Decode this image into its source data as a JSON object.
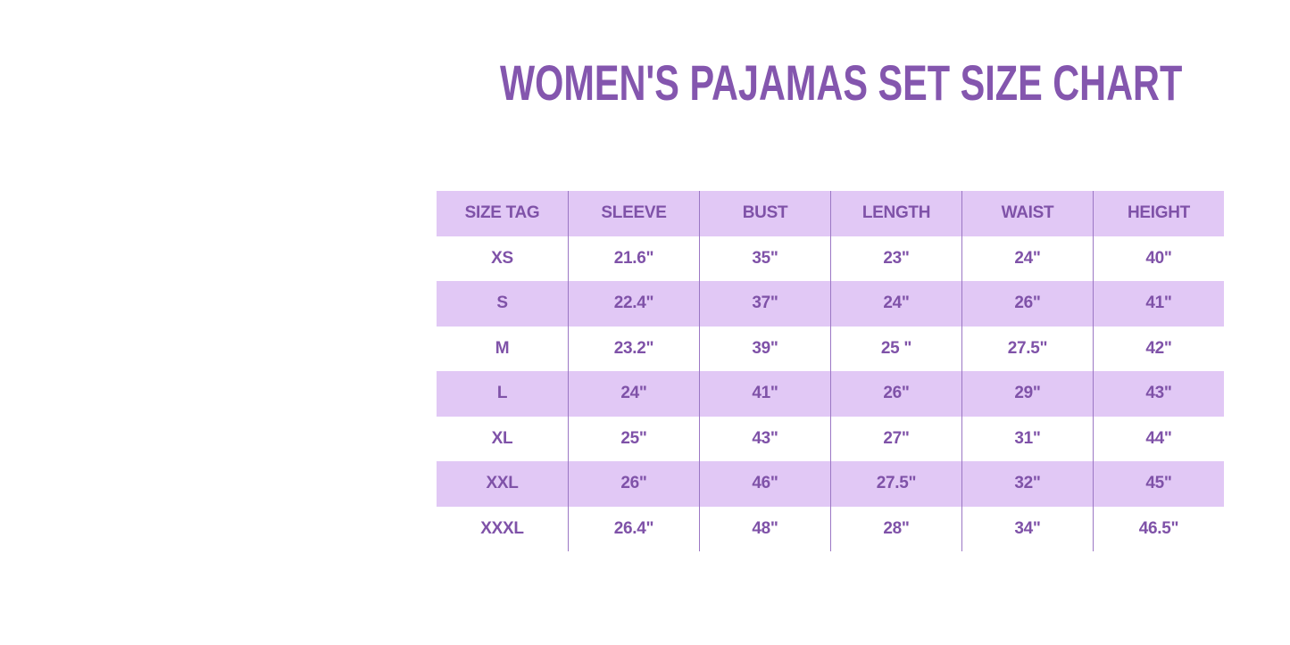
{
  "title": "WOMEN'S PAJAMAS SET SIZE CHART",
  "table": {
    "headers": [
      "SIZE TAG",
      "SLEEVE",
      "BUST",
      "LENGTH",
      "WAIST",
      "HEIGHT"
    ],
    "rows": [
      [
        "XS",
        "21.6\"",
        "35\"",
        "23\"",
        "24\"",
        "40\""
      ],
      [
        "S",
        "22.4\"",
        "37\"",
        "24\"",
        "26\"",
        "41\""
      ],
      [
        "M",
        "23.2\"",
        "39\"",
        "25 \"",
        "27.5\"",
        "42\""
      ],
      [
        "L",
        "24\"",
        "41\"",
        "26\"",
        "29\"",
        "43\""
      ],
      [
        "XL",
        "25\"",
        "43\"",
        "27\"",
        "31\"",
        "44\""
      ],
      [
        "XXL",
        "26\"",
        "46\"",
        "27.5\"",
        "32\"",
        "45\""
      ],
      [
        "XXXL",
        "26.4\"",
        "48\"",
        "28\"",
        "34\"",
        "46.5\""
      ]
    ]
  }
}
